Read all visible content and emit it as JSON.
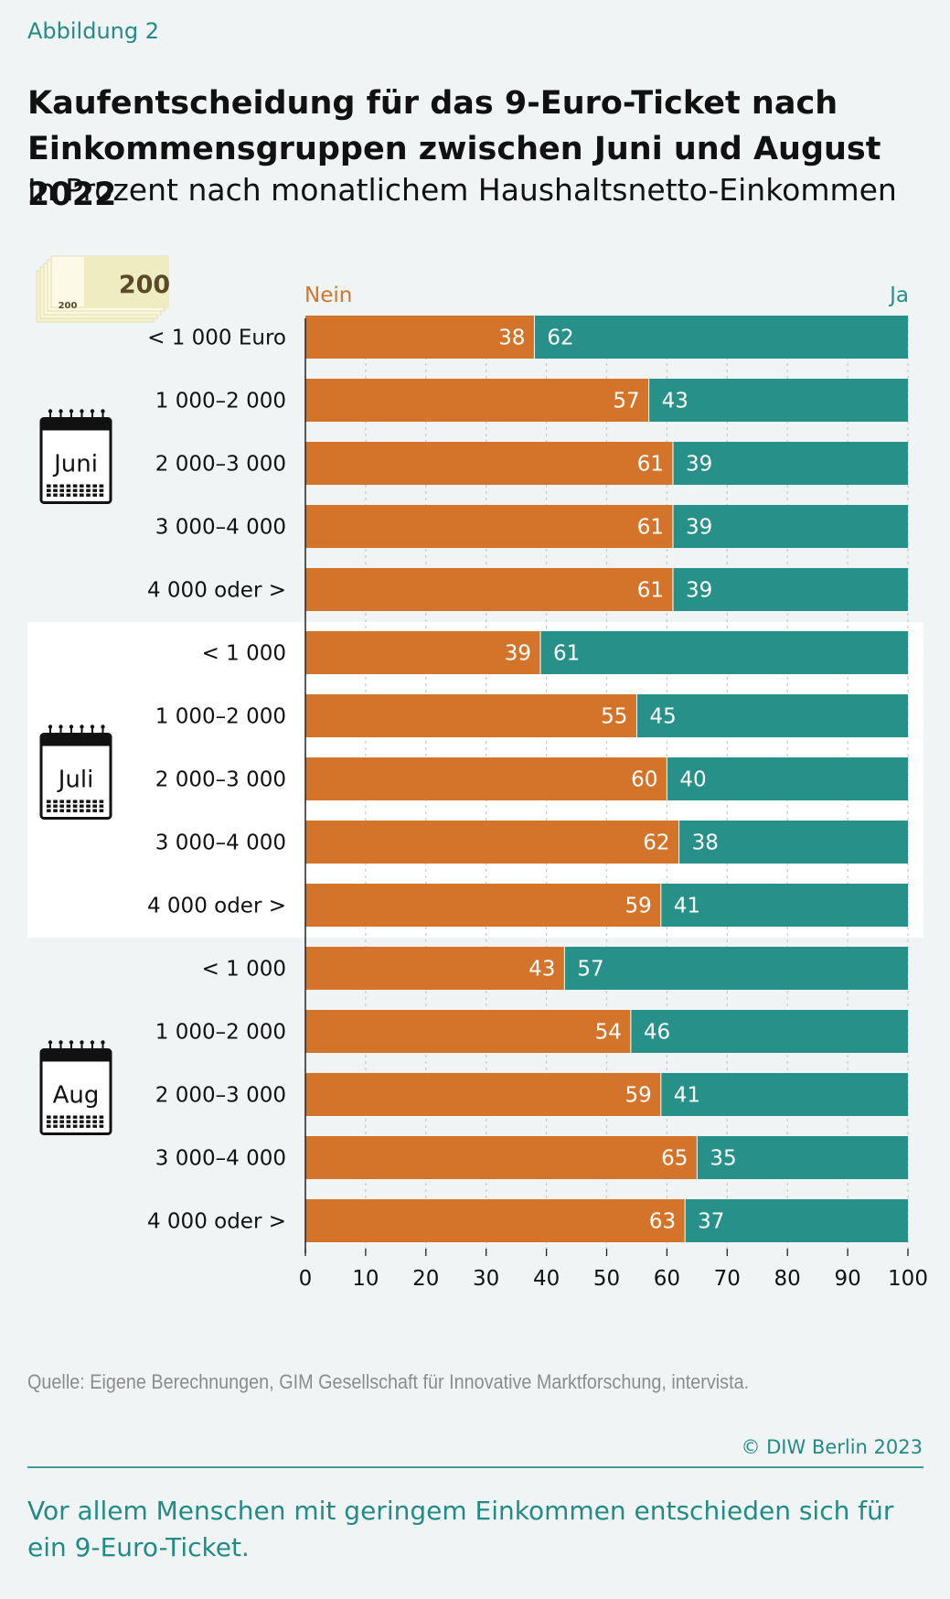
{
  "figure_label": "Abbildung 2",
  "title": "Kaufentscheidung für das 9-Euro-Ticket nach Einkommensgruppen zwischen Juni und August 2022",
  "subtitle": "In Prozent nach monatlichem Haushaltsnetto-Einkommen",
  "source": "Quelle: Eigene Berechnungen, GIM Gesellschaft für Innovative Marktforschung, intervista.",
  "copyright": "© DIW Berlin 2023",
  "takeaway": "Vor allem Menschen mit geringem Einkommen entschieden sich für ein 9-Euro-Ticket.",
  "money_icon_text": "200",
  "colors": {
    "nein": "#d4742a",
    "ja": "#279189",
    "accent": "#218b85",
    "highlight_band": "#ffffff"
  },
  "chart_data": {
    "type": "bar",
    "orientation": "horizontal",
    "stacked": true,
    "series_labels": {
      "nein": "Nein",
      "ja": "Ja"
    },
    "xlim": [
      0,
      100
    ],
    "xticks": [
      0,
      10,
      20,
      30,
      40,
      50,
      60,
      70,
      80,
      90,
      100
    ],
    "groups": [
      {
        "month": "Juni",
        "rows": [
          {
            "label": "< 1 000  Euro",
            "nein": 38,
            "ja": 62
          },
          {
            "label": "1 000–2 000",
            "nein": 57,
            "ja": 43
          },
          {
            "label": "2 000–3 000",
            "nein": 61,
            "ja": 39
          },
          {
            "label": "3 000–4 000",
            "nein": 61,
            "ja": 39
          },
          {
            "label": "4 000 oder >",
            "nein": 61,
            "ja": 39
          }
        ]
      },
      {
        "month": "Juli",
        "rows": [
          {
            "label": "< 1 000",
            "nein": 39,
            "ja": 61
          },
          {
            "label": "1 000–2 000",
            "nein": 55,
            "ja": 45
          },
          {
            "label": "2 000–3 000",
            "nein": 60,
            "ja": 40
          },
          {
            "label": "3 000–4 000",
            "nein": 62,
            "ja": 38
          },
          {
            "label": "4 000 oder >",
            "nein": 59,
            "ja": 41
          }
        ]
      },
      {
        "month": "Aug",
        "rows": [
          {
            "label": "< 1 000",
            "nein": 43,
            "ja": 57
          },
          {
            "label": "1 000–2 000",
            "nein": 54,
            "ja": 46
          },
          {
            "label": "2 000–3 000",
            "nein": 59,
            "ja": 41
          },
          {
            "label": "3 000–4 000",
            "nein": 65,
            "ja": 35
          },
          {
            "label": "4 000 oder >",
            "nein": 63,
            "ja": 37
          }
        ]
      }
    ]
  }
}
